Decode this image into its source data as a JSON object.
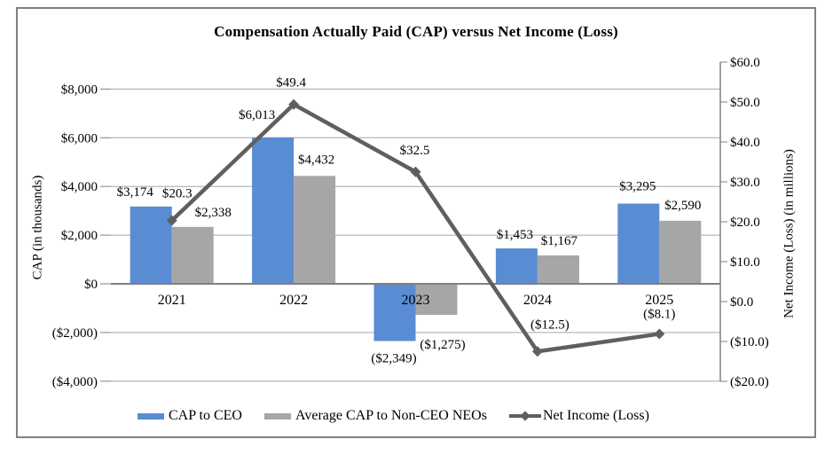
{
  "title": "Compensation Actually Paid (CAP) versus Net Income (Loss)",
  "chart_data": {
    "type": "combo-bar-line",
    "categories": [
      "2021",
      "2022",
      "2023",
      "2024",
      "2025"
    ],
    "series": [
      {
        "name": "CAP to CEO",
        "type": "bar",
        "axis": "left",
        "color": "#5A8CD4",
        "values": [
          3174,
          6013,
          -2349,
          1453,
          3295
        ],
        "labels": [
          "$3,174",
          "$6,013",
          "($2,349)",
          "$1,453",
          "$3,295"
        ]
      },
      {
        "name": "Average CAP to Non-CEO NEOs",
        "type": "bar",
        "axis": "left",
        "color": "#A6A6A6",
        "values": [
          2338,
          4432,
          -1275,
          1167,
          2590
        ],
        "labels": [
          "$2,338",
          "$4,432",
          "($1,275)",
          "$1,167",
          "$2,590"
        ]
      },
      {
        "name": "Net Income (Loss)",
        "type": "line",
        "axis": "right",
        "color": "#5F5F5F",
        "values": [
          20.3,
          49.4,
          32.5,
          -12.5,
          -8.1
        ],
        "labels": [
          "$20.3",
          "$49.4",
          "$32.5",
          "($12.5)",
          "($8.1)"
        ]
      }
    ],
    "left_axis": {
      "title": "CAP (in thousands)",
      "tick_labels": [
        "$8,000",
        "$6,000",
        "$4,000",
        "$2,000",
        "$0",
        "($2,000)",
        "($4,000)"
      ],
      "tick_values": [
        8000,
        6000,
        4000,
        2000,
        0,
        -2000,
        -4000
      ],
      "range": [
        -4000,
        8000
      ]
    },
    "right_axis": {
      "title": "Net Income (Loss) (in millions)",
      "tick_labels": [
        "$60.0",
        "$50.0",
        "$40.0",
        "$30.0",
        "$20.0",
        "$10.0",
        "$0.0",
        "($10.0)",
        "($20.0)"
      ],
      "tick_values": [
        60,
        50,
        40,
        30,
        20,
        10,
        0,
        -10,
        -20
      ],
      "range": [
        -20,
        60
      ]
    },
    "grid": true,
    "legend_position": "bottom"
  },
  "colors": {
    "bar_ceo": "#5A8CD4",
    "bar_neo": "#A6A6A6",
    "line": "#5F5F5F",
    "gridline": "#A6A6A6",
    "axis": "#808080",
    "border": "#808080",
    "text": "#000000"
  }
}
